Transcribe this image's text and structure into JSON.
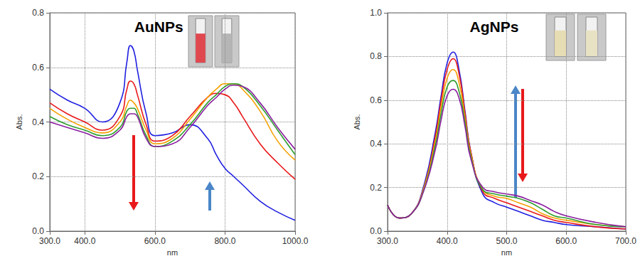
{
  "chart_data": [
    {
      "type": "line",
      "title": "AuNPs",
      "x_label": "nm",
      "y_label": "Abs.",
      "x": [
        300,
        350,
        400,
        450,
        500,
        520,
        530,
        540,
        550,
        575,
        600,
        650,
        700,
        750,
        775,
        800,
        825,
        850,
        900,
        950,
        1000
      ],
      "series": [
        {
          "color": "#1f1fe0",
          "values": [
            0.52,
            0.48,
            0.45,
            0.4,
            0.47,
            0.62,
            0.68,
            0.66,
            0.59,
            0.43,
            0.35,
            0.36,
            0.39,
            0.34,
            0.28,
            0.23,
            0.2,
            0.17,
            0.11,
            0.07,
            0.04
          ]
        },
        {
          "color": "#e8191b",
          "values": [
            0.47,
            0.43,
            0.4,
            0.37,
            0.42,
            0.52,
            0.55,
            0.54,
            0.5,
            0.39,
            0.33,
            0.35,
            0.42,
            0.49,
            0.505,
            0.5,
            0.47,
            0.42,
            0.32,
            0.25,
            0.19
          ]
        },
        {
          "color": "#f5a000",
          "values": [
            0.45,
            0.41,
            0.38,
            0.36,
            0.4,
            0.46,
            0.48,
            0.47,
            0.45,
            0.37,
            0.32,
            0.34,
            0.41,
            0.49,
            0.52,
            0.54,
            0.54,
            0.52,
            0.44,
            0.33,
            0.26
          ]
        },
        {
          "color": "#2e9e2e",
          "values": [
            0.42,
            0.39,
            0.37,
            0.35,
            0.38,
            0.44,
            0.45,
            0.45,
            0.43,
            0.35,
            0.31,
            0.33,
            0.39,
            0.47,
            0.5,
            0.53,
            0.54,
            0.53,
            0.46,
            0.37,
            0.28
          ]
        },
        {
          "color": "#8b1fa0",
          "values": [
            0.4,
            0.38,
            0.36,
            0.34,
            0.37,
            0.42,
            0.43,
            0.43,
            0.42,
            0.34,
            0.31,
            0.32,
            0.38,
            0.46,
            0.49,
            0.52,
            0.535,
            0.53,
            0.47,
            0.38,
            0.3
          ]
        }
      ],
      "xlim": [
        300,
        1000
      ],
      "xticks": [
        {
          "value": 300,
          "label": "300.0"
        },
        {
          "value": 400,
          "label": "400.0"
        },
        {
          "value": 600,
          "label": "600.0"
        },
        {
          "value": 800,
          "label": "800.0"
        },
        {
          "value": 1000,
          "label": "1000.0"
        }
      ],
      "ylim": [
        0,
        0.8
      ],
      "yticks": [
        {
          "value": 0,
          "label": "0.0"
        },
        0.2,
        0.4,
        0.6,
        0.8
      ],
      "grid": true
    },
    {
      "type": "line",
      "title": "AgNPs",
      "x_label": "nm",
      "y_label": "Abs.",
      "x": [
        300,
        320,
        340,
        360,
        380,
        390,
        400,
        410,
        420,
        430,
        440,
        460,
        480,
        500,
        520,
        540,
        560,
        580,
        600,
        650,
        700
      ],
      "series": [
        {
          "color": "#1f1fe0",
          "values": [
            0.12,
            0.06,
            0.08,
            0.2,
            0.45,
            0.62,
            0.77,
            0.82,
            0.74,
            0.55,
            0.36,
            0.17,
            0.13,
            0.11,
            0.09,
            0.07,
            0.05,
            0.04,
            0.03,
            0.02,
            0.01
          ]
        },
        {
          "color": "#e8191b",
          "values": [
            0.12,
            0.06,
            0.08,
            0.19,
            0.43,
            0.6,
            0.74,
            0.79,
            0.72,
            0.54,
            0.36,
            0.18,
            0.15,
            0.13,
            0.11,
            0.09,
            0.07,
            0.05,
            0.04,
            0.02,
            0.01
          ]
        },
        {
          "color": "#f5a000",
          "values": [
            0.12,
            0.06,
            0.08,
            0.19,
            0.41,
            0.57,
            0.7,
            0.74,
            0.68,
            0.52,
            0.35,
            0.19,
            0.16,
            0.15,
            0.13,
            0.11,
            0.08,
            0.06,
            0.05,
            0.03,
            0.02
          ]
        },
        {
          "color": "#2e9e2e",
          "values": [
            0.12,
            0.06,
            0.08,
            0.18,
            0.39,
            0.54,
            0.66,
            0.69,
            0.64,
            0.5,
            0.34,
            0.19,
            0.17,
            0.16,
            0.15,
            0.13,
            0.1,
            0.07,
            0.06,
            0.03,
            0.02
          ]
        },
        {
          "color": "#8b1fa0",
          "values": [
            0.12,
            0.06,
            0.08,
            0.18,
            0.37,
            0.51,
            0.62,
            0.65,
            0.61,
            0.48,
            0.33,
            0.2,
            0.18,
            0.17,
            0.16,
            0.14,
            0.12,
            0.09,
            0.07,
            0.04,
            0.02
          ]
        }
      ],
      "xlim": [
        300,
        700
      ],
      "xticks": [
        {
          "value": 300,
          "label": "300.0"
        },
        {
          "value": 400,
          "label": "400.0"
        },
        {
          "value": 500,
          "label": "500.0"
        },
        {
          "value": 600,
          "label": "600.0"
        },
        {
          "value": 700,
          "label": "700.0"
        }
      ],
      "ylim": [
        0,
        1
      ],
      "yticks": [
        {
          "value": 0,
          "label": "0.0"
        },
        0.2,
        0.4,
        0.6,
        0.8,
        {
          "value": 1,
          "label": "1.0"
        }
      ],
      "grid": true
    }
  ]
}
